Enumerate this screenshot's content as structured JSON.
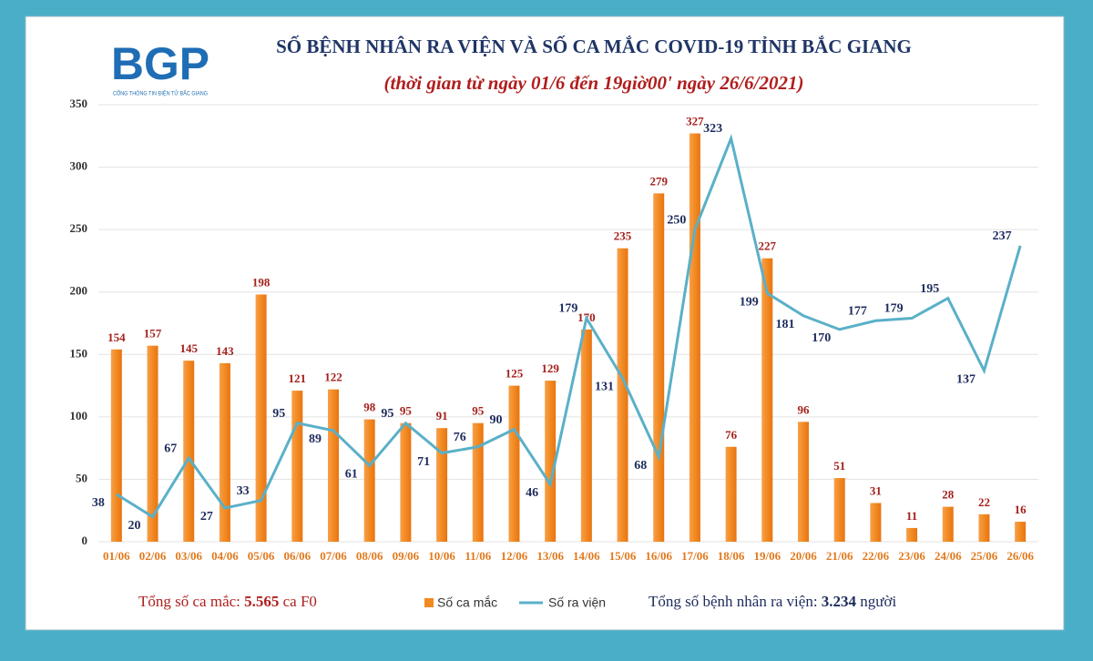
{
  "logo": {
    "text": "BGP",
    "caption": "CỔNG THÔNG TIN ĐIỆN TỬ BẮC GIANG"
  },
  "chart_data": {
    "type": "bar_line",
    "title": "SỐ BỆNH NHÂN RA VIỆN  VÀ SỐ CA MẮC COVID-19 TỈNH BẮC GIANG",
    "subtitle": "(thời gian từ ngày 01/6 đến 19giờ00' ngày 26/6/2021)",
    "categories": [
      "01/06",
      "02/06",
      "03/06",
      "04/06",
      "05/06",
      "06/06",
      "07/06",
      "08/06",
      "09/06",
      "10/06",
      "11/06",
      "12/06",
      "13/06",
      "14/06",
      "15/06",
      "16/06",
      "17/06",
      "18/06",
      "19/06",
      "20/06",
      "21/06",
      "22/06",
      "23/06",
      "24/06",
      "25/06",
      "26/06"
    ],
    "series": [
      {
        "name": "Số ca mắc",
        "kind": "bar",
        "color": "#f28a22",
        "label_color": "#a3201b",
        "values": [
          154,
          157,
          145,
          143,
          198,
          121,
          122,
          98,
          95,
          91,
          95,
          125,
          129,
          170,
          235,
          279,
          327,
          76,
          227,
          96,
          51,
          31,
          11,
          28,
          22,
          16
        ]
      },
      {
        "name": "Số ra viện",
        "kind": "line",
        "color": "#5ab0c8",
        "label_color": "#1d2b5c",
        "values": [
          38,
          20,
          67,
          27,
          33,
          95,
          89,
          61,
          95,
          71,
          76,
          90,
          46,
          179,
          131,
          68,
          250,
          323,
          199,
          181,
          170,
          177,
          179,
          195,
          137,
          237
        ]
      }
    ],
    "ylim": [
      0,
      350
    ],
    "yticks": [
      0,
      50,
      100,
      150,
      200,
      250,
      300,
      350
    ],
    "grid": true,
    "notes": {
      "cases": {
        "prefix": "Tổng số ca mắc: ",
        "number": "5.565",
        "suffix": " ca F0"
      },
      "discharged": {
        "prefix": "Tổng số bệnh nhân ra viện: ",
        "number": "3.234",
        "suffix": " người"
      }
    }
  }
}
